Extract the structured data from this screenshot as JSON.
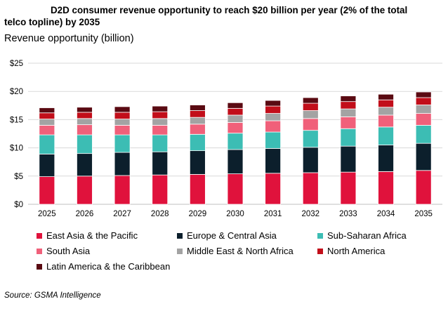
{
  "title_line1": "D2D consumer revenue opportunity to reach $20 billion per year (2% of the total",
  "title_line2": "telco topline) by 2035",
  "subtitle": "Revenue opportunity (billion)",
  "source": "Source: GSMA Intelligence",
  "chart_data": {
    "type": "bar",
    "stacked": true,
    "ylim": [
      0,
      25
    ],
    "yticks": [
      0,
      5,
      10,
      15,
      20,
      25
    ],
    "ytick_labels": [
      "$0",
      "$5",
      "$10",
      "$15",
      "$20",
      "$25"
    ],
    "grid": true,
    "legend_position": "bottom",
    "categories": [
      "2025",
      "2026",
      "2027",
      "2028",
      "2029",
      "2030",
      "2031",
      "2032",
      "2033",
      "2034",
      "2035"
    ],
    "series": [
      {
        "name": "East Asia & the Pacific",
        "color": "#e0123c",
        "values": [
          4.9,
          5.0,
          5.1,
          5.2,
          5.3,
          5.4,
          5.5,
          5.6,
          5.7,
          5.8,
          6.0
        ]
      },
      {
        "name": "Europe & Central Asia",
        "color": "#0c1f2c",
        "values": [
          4.0,
          4.0,
          4.1,
          4.1,
          4.2,
          4.3,
          4.4,
          4.5,
          4.6,
          4.7,
          4.8
        ]
      },
      {
        "name": "Sub-Saharan Africa",
        "color": "#3cbdb4",
        "values": [
          3.4,
          3.3,
          3.1,
          3.0,
          2.9,
          2.9,
          2.9,
          3.0,
          3.1,
          3.2,
          3.2
        ]
      },
      {
        "name": "South Asia",
        "color": "#f0607a",
        "values": [
          1.7,
          1.8,
          1.7,
          1.7,
          1.8,
          1.9,
          2.0,
          2.1,
          2.1,
          2.1,
          2.1
        ]
      },
      {
        "name": "Middle East & North Africa",
        "color": "#a3a3a3",
        "values": [
          1.1,
          1.1,
          1.1,
          1.2,
          1.2,
          1.3,
          1.3,
          1.4,
          1.4,
          1.4,
          1.5
        ]
      },
      {
        "name": "North America",
        "color": "#c20e1a",
        "values": [
          1.1,
          1.1,
          1.2,
          1.2,
          1.2,
          1.2,
          1.3,
          1.3,
          1.3,
          1.3,
          1.3
        ]
      },
      {
        "name": "Latin America & the Caribbean",
        "color": "#5a0a12",
        "values": [
          0.9,
          0.9,
          1.0,
          1.0,
          1.0,
          1.0,
          1.0,
          1.0,
          1.0,
          1.0,
          1.0
        ]
      }
    ]
  }
}
